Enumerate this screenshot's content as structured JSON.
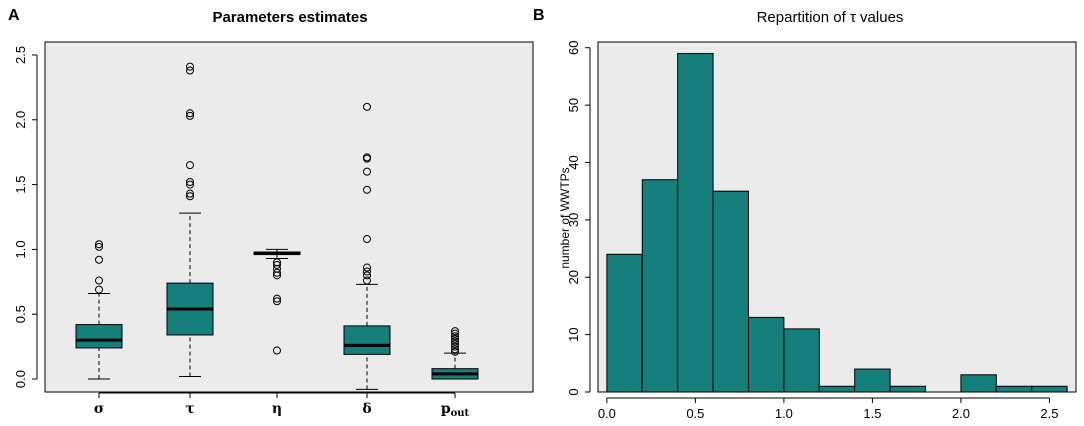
{
  "chart_data": [
    {
      "panel_label": "A",
      "type": "box",
      "title": "Parameters estimates",
      "xlabel": "",
      "ylabel": "",
      "ylim": [
        -0.1,
        2.6
      ],
      "yticks": [
        "0.0",
        "0.5",
        "1.0",
        "1.5",
        "2.0",
        "2.5"
      ],
      "fill_color": "#147f7b",
      "background_color": "#ebebeb",
      "boxes": [
        {
          "name": "sigma",
          "label": "σ",
          "whisker_low": 0.0,
          "q1": 0.24,
          "median": 0.3,
          "q3": 0.42,
          "whisker_high": 0.66,
          "outliers": [
            0.69,
            0.76,
            0.92,
            1.02,
            1.04
          ]
        },
        {
          "name": "tau",
          "label": "τ",
          "whisker_low": 0.02,
          "q1": 0.34,
          "median": 0.54,
          "q3": 0.74,
          "whisker_high": 1.28,
          "outliers": [
            1.41,
            1.43,
            1.5,
            1.52,
            1.65,
            2.03,
            2.05,
            2.38,
            2.41
          ]
        },
        {
          "name": "eta",
          "label": "η",
          "whisker_low": 0.93,
          "q1": 0.96,
          "median": 0.97,
          "q3": 0.98,
          "whisker_high": 1.0,
          "outliers": [
            0.22,
            0.6,
            0.62,
            0.8,
            0.82,
            0.85,
            0.88,
            0.9
          ]
        },
        {
          "name": "delta",
          "label": "δ",
          "whisker_low": -0.08,
          "q1": 0.19,
          "median": 0.26,
          "q3": 0.41,
          "whisker_high": 0.73,
          "outliers": [
            0.76,
            0.8,
            0.83,
            0.86,
            1.08,
            1.46,
            1.6,
            1.7,
            1.71,
            2.1
          ]
        },
        {
          "name": "p_out",
          "label": "p",
          "label_sub": "out",
          "whisker_low": 0.0,
          "q1": 0.0,
          "median": 0.04,
          "q3": 0.08,
          "whisker_high": 0.2,
          "outliers": [
            0.21,
            0.23,
            0.25,
            0.27,
            0.29,
            0.31,
            0.33,
            0.35,
            0.37
          ]
        }
      ]
    },
    {
      "panel_label": "B",
      "type": "histogram",
      "title": "Repartition of τ values",
      "xlabel": "",
      "ylabel": "number of WWTPs",
      "xlim": [
        -0.05,
        2.65
      ],
      "ylim": [
        0,
        61
      ],
      "xticks": [
        "0.0",
        "0.5",
        "1.0",
        "1.5",
        "2.0",
        "2.5"
      ],
      "yticks": [
        "0",
        "10",
        "20",
        "30",
        "40",
        "50",
        "60"
      ],
      "fill_color": "#147f7b",
      "background_color": "#ebebeb",
      "bin_width": 0.2,
      "bin_starts": [
        0.0,
        0.2,
        0.4,
        0.6,
        0.8,
        1.0,
        1.2,
        1.4,
        1.6,
        1.8,
        2.0,
        2.2,
        2.4
      ],
      "counts": [
        24,
        37,
        59,
        35,
        13,
        11,
        1,
        4,
        1,
        0,
        3,
        1,
        1
      ]
    }
  ]
}
